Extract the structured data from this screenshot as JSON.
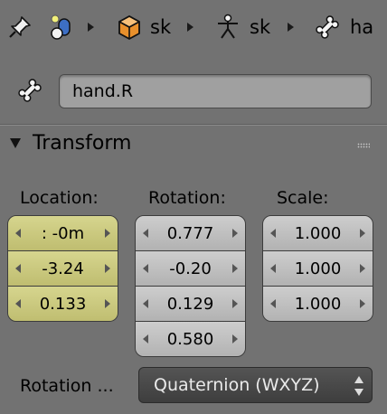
{
  "breadcrumb": {
    "pin_icon": "pin-icon",
    "scene_icon": "scene-icon",
    "items": [
      {
        "icon": "object-cube-icon",
        "label": "sk"
      },
      {
        "icon": "armature-icon",
        "label": "sk"
      },
      {
        "icon": "bone-icon",
        "label": "ha"
      }
    ]
  },
  "bone": {
    "icon": "bone-icon",
    "name": "hand.R"
  },
  "panel": {
    "title": "Transform"
  },
  "transform": {
    "location": {
      "label": "Location:",
      "values": [
        ":  -0m",
        "-3.24",
        "0.133"
      ]
    },
    "rotation": {
      "label": "Rotation:",
      "values": [
        "0.777",
        "-0.20",
        "0.129",
        "0.580"
      ]
    },
    "scale": {
      "label": "Scale:",
      "values": [
        "1.000",
        "1.000",
        "1.000"
      ]
    }
  },
  "rotation_mode": {
    "label": "Rotation ...",
    "value": "Quaternion (WXYZ)"
  },
  "colors": {
    "background": "#727272",
    "location_field": "#cfcd84",
    "field": "#c2c2c2",
    "select": "#494949"
  }
}
